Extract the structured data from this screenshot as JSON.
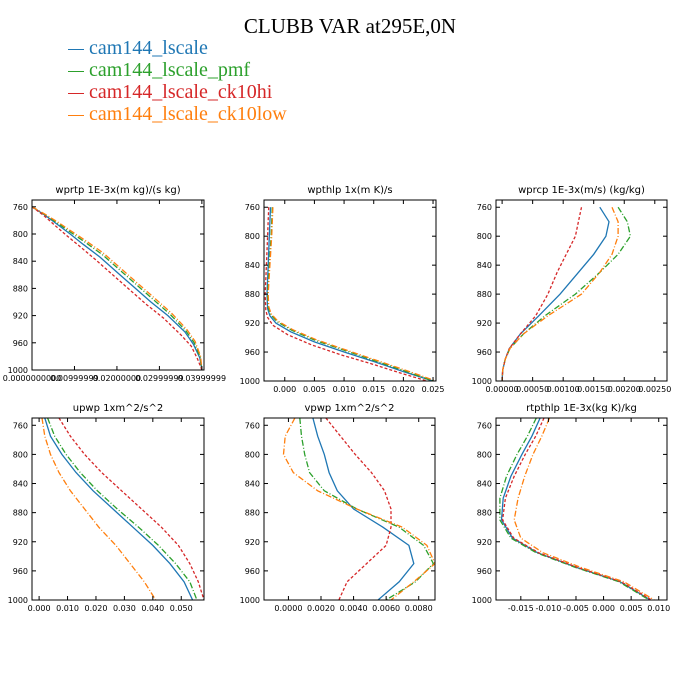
{
  "title": "CLUBB VAR at295E,0N",
  "legend": [
    {
      "label": "cam144_lscale",
      "color": "#1f77b4"
    },
    {
      "label": "cam144_lscale_pmf",
      "color": "#2ca02c"
    },
    {
      "label": "cam144_lscale_ck10hi",
      "color": "#d62728"
    },
    {
      "label": "cam144_lscale_ck10low",
      "color": "#ff7f0e"
    }
  ],
  "chart_data": [
    {
      "type": "line",
      "title": "wprtp  1E-3x(m kg)/(s kg)",
      "y_axis": {
        "range": [
          1000,
          750
        ],
        "ticks": [
          "760",
          "800",
          "840",
          "880",
          "920",
          "960",
          "1000"
        ]
      },
      "x_axis": {
        "range": [
          0.0,
          0.0405
        ],
        "ticks": [
          "0.0000000000",
          "0.00999999",
          "0.02000000",
          "0.02999999",
          "0.03999999"
        ]
      },
      "series": [
        {
          "x": [
            0.0,
            0.003,
            0.006,
            0.009,
            0.012,
            0.016,
            0.02,
            0.024,
            0.028,
            0.032,
            0.036,
            0.038,
            0.0395,
            0.04
          ],
          "y": [
            760,
            772,
            786,
            800,
            815,
            834,
            856,
            878,
            900,
            920,
            944,
            962,
            982,
            1000
          ]
        },
        {
          "x": [
            0.0,
            0.003,
            0.006,
            0.009,
            0.0125,
            0.0165,
            0.0205,
            0.0245,
            0.0285,
            0.0325,
            0.0362,
            0.0382,
            0.0396,
            0.04
          ],
          "y": [
            760,
            771,
            784,
            797,
            812,
            830,
            852,
            874,
            896,
            918,
            942,
            960,
            981,
            1000
          ]
        },
        {
          "x": [
            0.0,
            0.0028,
            0.0055,
            0.0083,
            0.0112,
            0.015,
            0.019,
            0.023,
            0.027,
            0.031,
            0.035,
            0.0375,
            0.039,
            0.04
          ],
          "y": [
            760,
            773,
            788,
            803,
            818,
            838,
            860,
            882,
            904,
            924,
            948,
            965,
            984,
            1000
          ]
        },
        {
          "x": [
            0.0,
            0.0031,
            0.0062,
            0.0093,
            0.0127,
            0.0168,
            0.0208,
            0.0248,
            0.0288,
            0.0328,
            0.0364,
            0.0384,
            0.0397,
            0.04
          ],
          "y": [
            760,
            771,
            783,
            796,
            810,
            828,
            850,
            872,
            894,
            916,
            940,
            958,
            980,
            1000
          ]
        }
      ]
    },
    {
      "type": "line",
      "title": "wpthlp  1x(m K)/s",
      "y_axis": {
        "range": [
          1000,
          750
        ],
        "ticks": [
          "760",
          "800",
          "840",
          "880",
          "920",
          "960",
          "1000"
        ]
      },
      "x_axis": {
        "range": [
          -0.0035,
          0.0255
        ],
        "ticks": [
          "0.000",
          "0.005",
          "0.010",
          "0.015",
          "0.020",
          "0.025"
        ]
      },
      "series": [
        {
          "x": [
            -0.0024,
            -0.0026,
            -0.0028,
            -0.003,
            -0.0029,
            -0.0025,
            -0.0015,
            0.001,
            0.005,
            0.01,
            0.015,
            0.02,
            0.025
          ],
          "y": [
            760,
            800,
            840,
            880,
            900,
            910,
            920,
            932,
            946,
            960,
            973,
            987,
            1000
          ]
        },
        {
          "x": [
            -0.0021,
            -0.0023,
            -0.0026,
            -0.0029,
            -0.0028,
            -0.0024,
            -0.0013,
            0.0012,
            0.0052,
            0.0102,
            0.0152,
            0.0202,
            0.025
          ],
          "y": [
            760,
            800,
            840,
            880,
            898,
            908,
            918,
            930,
            944,
            958,
            972,
            986,
            1000
          ]
        },
        {
          "x": [
            -0.0027,
            -0.0029,
            -0.0031,
            -0.0033,
            -0.0032,
            -0.0029,
            -0.002,
            0.0005,
            0.0045,
            0.0095,
            0.0145,
            0.0195,
            0.024
          ],
          "y": [
            760,
            800,
            840,
            880,
            902,
            912,
            923,
            936,
            950,
            964,
            976,
            989,
            1000
          ]
        },
        {
          "x": [
            -0.002,
            -0.0022,
            -0.0025,
            -0.0028,
            -0.0027,
            -0.0023,
            -0.0012,
            0.0013,
            0.0053,
            0.0103,
            0.0153,
            0.0203,
            0.0255
          ],
          "y": [
            760,
            800,
            840,
            880,
            897,
            907,
            917,
            929,
            943,
            957,
            971,
            985,
            1000
          ]
        }
      ]
    },
    {
      "type": "line",
      "title": "wprcp  1E-3x(m/s) (kg/kg)",
      "y_axis": {
        "range": [
          1000,
          750
        ],
        "ticks": [
          "760",
          "800",
          "840",
          "880",
          "920",
          "960",
          "1000"
        ]
      },
      "x_axis": {
        "range": [
          -0.0001,
          0.0027
        ],
        "ticks": [
          "0.00000",
          "0.00050",
          "0.00100",
          "0.00150",
          "0.00200",
          "0.00250"
        ]
      },
      "series": [
        {
          "x": [
            0.0016,
            0.00175,
            0.0017,
            0.0015,
            0.00125,
            0.00095,
            0.0006,
            0.0003,
            0.00012,
            5e-05,
            1e-05,
            0.0
          ],
          "y": [
            760,
            780,
            800,
            825,
            850,
            880,
            910,
            935,
            955,
            970,
            985,
            1000
          ]
        },
        {
          "x": [
            0.0019,
            0.00205,
            0.0021,
            0.0019,
            0.0016,
            0.0012,
            0.0007,
            0.00035,
            0.00013,
            5e-05,
            1e-05,
            0.0
          ],
          "y": [
            760,
            780,
            800,
            825,
            850,
            880,
            910,
            935,
            955,
            970,
            985,
            1000
          ]
        },
        {
          "x": [
            0.0013,
            0.00125,
            0.0012,
            0.00105,
            0.0009,
            0.00075,
            0.00055,
            0.0003,
            0.00012,
            5e-05,
            1e-05,
            0.0
          ],
          "y": [
            760,
            780,
            800,
            825,
            850,
            880,
            910,
            935,
            955,
            970,
            985,
            1000
          ]
        },
        {
          "x": [
            0.0018,
            0.0019,
            0.0019,
            0.0018,
            0.0016,
            0.0013,
            0.00075,
            0.00035,
            0.00013,
            5e-05,
            1e-05,
            0.0
          ],
          "y": [
            760,
            780,
            800,
            825,
            850,
            880,
            910,
            935,
            955,
            970,
            985,
            1000
          ]
        }
      ]
    },
    {
      "type": "line",
      "title": "upwp  1xm^2/s^2",
      "y_axis": {
        "range": [
          1000,
          750
        ],
        "ticks": [
          "760",
          "800",
          "840",
          "880",
          "920",
          "960",
          "1000"
        ]
      },
      "x_axis": {
        "range": [
          -0.0025,
          0.058
        ],
        "ticks": [
          "0.000",
          "0.010",
          "0.020",
          "0.030",
          "0.040",
          "0.050"
        ]
      },
      "series": [
        {
          "x": [
            0.002,
            0.004,
            0.008,
            0.013,
            0.019,
            0.026,
            0.033,
            0.04,
            0.046,
            0.051,
            0.054
          ],
          "y": [
            750,
            775,
            800,
            825,
            850,
            875,
            900,
            925,
            950,
            975,
            1000
          ]
        },
        {
          "x": [
            0.003,
            0.0055,
            0.0095,
            0.0145,
            0.0205,
            0.0275,
            0.035,
            0.042,
            0.048,
            0.053,
            0.0555
          ],
          "y": [
            750,
            775,
            800,
            825,
            850,
            875,
            900,
            925,
            950,
            975,
            1000
          ]
        },
        {
          "x": [
            0.007,
            0.011,
            0.016,
            0.022,
            0.029,
            0.036,
            0.043,
            0.049,
            0.053,
            0.056,
            0.058
          ],
          "y": [
            750,
            775,
            800,
            825,
            850,
            875,
            900,
            925,
            950,
            975,
            1000
          ]
        },
        {
          "x": [
            0.001,
            0.002,
            0.004,
            0.007,
            0.011,
            0.016,
            0.021,
            0.027,
            0.032,
            0.037,
            0.041
          ],
          "y": [
            750,
            775,
            800,
            825,
            850,
            875,
            900,
            925,
            950,
            975,
            1000
          ]
        }
      ]
    },
    {
      "type": "line",
      "title": "vpwp  1xm^2/s^2",
      "y_axis": {
        "range": [
          1000,
          750
        ],
        "ticks": [
          "760",
          "800",
          "840",
          "880",
          "920",
          "960",
          "1000"
        ]
      },
      "x_axis": {
        "range": [
          -0.0015,
          0.009
        ],
        "ticks": [
          "0.0000",
          "0.0020",
          "0.0040",
          "0.0060",
          "0.0080"
        ]
      },
      "series": [
        {
          "x": [
            0.0015,
            0.0018,
            0.0022,
            0.0025,
            0.003,
            0.004,
            0.0058,
            0.0074,
            0.0077,
            0.0068,
            0.0055
          ],
          "y": [
            750,
            775,
            800,
            825,
            850,
            875,
            900,
            925,
            950,
            975,
            1000
          ]
        },
        {
          "x": [
            0.0007,
            0.0008,
            0.001,
            0.0013,
            0.0022,
            0.0042,
            0.0068,
            0.0083,
            0.0089,
            0.0078,
            0.006
          ],
          "y": [
            750,
            775,
            800,
            825,
            850,
            875,
            900,
            925,
            950,
            975,
            1000
          ]
        },
        {
          "x": [
            0.0023,
            0.0032,
            0.0041,
            0.0051,
            0.0059,
            0.0063,
            0.0063,
            0.006,
            0.0048,
            0.0036,
            0.0031
          ],
          "y": [
            750,
            775,
            800,
            825,
            850,
            875,
            900,
            925,
            950,
            975,
            1000
          ]
        },
        {
          "x": [
            0.0004,
            -0.0002,
            -0.0003,
            0.0003,
            0.0018,
            0.0042,
            0.007,
            0.0085,
            0.009,
            0.0077,
            0.0063
          ],
          "y": [
            750,
            775,
            800,
            825,
            850,
            875,
            900,
            925,
            950,
            975,
            1000
          ]
        }
      ]
    },
    {
      "type": "line",
      "title": "rtpthlp  1E-3x(kg K)/kg",
      "y_axis": {
        "range": [
          1000,
          750
        ],
        "ticks": [
          "760",
          "800",
          "840",
          "880",
          "920",
          "960",
          "1000"
        ]
      },
      "x_axis": {
        "range": [
          -0.0195,
          0.0115
        ],
        "ticks": [
          "-0.015",
          "-0.010",
          "-0.005",
          "0.000",
          "0.005",
          "0.010"
        ]
      },
      "series": [
        {
          "x": [
            -0.0115,
            -0.013,
            -0.0148,
            -0.0168,
            -0.0182,
            -0.0185,
            -0.0165,
            -0.012,
            -0.005,
            0.003,
            0.0085
          ],
          "y": [
            750,
            775,
            800,
            830,
            860,
            890,
            915,
            935,
            955,
            975,
            1000
          ]
        },
        {
          "x": [
            -0.0122,
            -0.0138,
            -0.0157,
            -0.0176,
            -0.0188,
            -0.0188,
            -0.0168,
            -0.0122,
            -0.0052,
            0.0028,
            0.0083
          ],
          "y": [
            750,
            775,
            800,
            830,
            860,
            890,
            915,
            935,
            955,
            975,
            1000
          ]
        },
        {
          "x": [
            -0.0108,
            -0.0123,
            -0.0142,
            -0.0162,
            -0.0178,
            -0.0183,
            -0.0163,
            -0.0118,
            -0.0048,
            0.0032,
            0.0087
          ],
          "y": [
            750,
            775,
            800,
            830,
            860,
            890,
            915,
            935,
            955,
            975,
            1000
          ]
        },
        {
          "x": [
            -0.0098,
            -0.0112,
            -0.0128,
            -0.0143,
            -0.0155,
            -0.0162,
            -0.015,
            -0.011,
            -0.0042,
            0.0037,
            0.0092
          ],
          "y": [
            750,
            775,
            800,
            830,
            860,
            890,
            915,
            935,
            955,
            975,
            1000
          ]
        }
      ]
    }
  ]
}
